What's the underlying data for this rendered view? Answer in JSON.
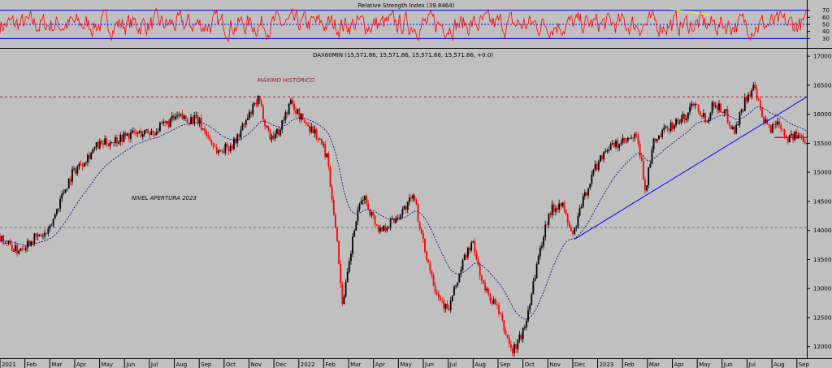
{
  "chart_data": [
    {
      "type": "line",
      "title": "Relative Strength Index (39.8464)",
      "y_ticks": [
        "70",
        "60",
        "50",
        "40",
        "30"
      ],
      "ylim": [
        20,
        80
      ],
      "levels": [
        70,
        50,
        30
      ],
      "series": [
        {
          "name": "",
          "color": "#ff0000"
        }
      ],
      "trendline": {
        "color": "#ffff00",
        "points": [
          [
            0.83,
            72
          ],
          [
            0.88,
            63
          ]
        ]
      }
    },
    {
      "type": "candlestick",
      "title": "DAX60MIN (15,571.86, 15,571.86, 15,571.86, 15,571.86, +0.0)",
      "y_ticks": [
        "17000",
        "16500",
        "16000",
        "15500",
        "15000",
        "14500",
        "14000",
        "13500",
        "13000",
        "12500",
        "12000"
      ],
      "ylim": [
        11800,
        17100
      ],
      "x_ticks": [
        "2021",
        "Feb",
        "Mar",
        "Apr",
        "May",
        "Jun",
        "Jul",
        "Aug",
        "Sep",
        "Oct",
        "Nov",
        "Dec",
        "2022",
        "Feb",
        "Mar",
        "Apr",
        "May",
        "Jun",
        "Jul",
        "Aug",
        "Sep",
        "Oct",
        "Nov",
        "Dec",
        "2023",
        "Feb",
        "Mar",
        "Apr",
        "May",
        "Jun",
        "Jul",
        "Aug",
        "Sep"
      ],
      "anchors": [
        [
          0.0,
          13900
        ],
        [
          0.02,
          13650
        ],
        [
          0.04,
          13850
        ],
        [
          0.06,
          13950
        ],
        [
          0.075,
          14550
        ],
        [
          0.09,
          15000
        ],
        [
          0.12,
          15450
        ],
        [
          0.16,
          15650
        ],
        [
          0.19,
          15700
        ],
        [
          0.22,
          15950
        ],
        [
          0.245,
          15900
        ],
        [
          0.27,
          15350
        ],
        [
          0.29,
          15500
        ],
        [
          0.31,
          16000
        ],
        [
          0.32,
          16250
        ],
        [
          0.335,
          15600
        ],
        [
          0.345,
          15700
        ],
        [
          0.36,
          16200
        ],
        [
          0.375,
          15900
        ],
        [
          0.39,
          15700
        ],
        [
          0.405,
          15300
        ],
        [
          0.415,
          14200
        ],
        [
          0.425,
          12700
        ],
        [
          0.44,
          14100
        ],
        [
          0.45,
          14600
        ],
        [
          0.47,
          14000
        ],
        [
          0.49,
          14200
        ],
        [
          0.515,
          14600
        ],
        [
          0.52,
          14000
        ],
        [
          0.54,
          13000
        ],
        [
          0.555,
          12600
        ],
        [
          0.575,
          13500
        ],
        [
          0.585,
          13800
        ],
        [
          0.6,
          13000
        ],
        [
          0.615,
          12700
        ],
        [
          0.625,
          12300
        ],
        [
          0.635,
          11900
        ],
        [
          0.65,
          12300
        ],
        [
          0.665,
          13400
        ],
        [
          0.68,
          14300
        ],
        [
          0.695,
          14500
        ],
        [
          0.71,
          13900
        ],
        [
          0.72,
          14400
        ],
        [
          0.735,
          15000
        ],
        [
          0.75,
          15400
        ],
        [
          0.77,
          15500
        ],
        [
          0.79,
          15600
        ],
        [
          0.8,
          14700
        ],
        [
          0.81,
          15500
        ],
        [
          0.83,
          15800
        ],
        [
          0.85,
          15950
        ],
        [
          0.86,
          16250
        ],
        [
          0.875,
          15900
        ],
        [
          0.885,
          16200
        ],
        [
          0.9,
          16000
        ],
        [
          0.91,
          15700
        ],
        [
          0.925,
          16300
        ],
        [
          0.935,
          16450
        ],
        [
          0.945,
          15900
        ],
        [
          0.955,
          15750
        ],
        [
          0.965,
          15900
        ],
        [
          0.975,
          15600
        ],
        [
          0.99,
          15620
        ],
        [
          1.0,
          15570
        ]
      ],
      "ma": {
        "name": "",
        "color": "#000080"
      },
      "levels": [
        {
          "value": 16300,
          "color": "#8b1a1a",
          "label": "MÁXIMO HISTÓRICO"
        },
        {
          "value": 14050,
          "color": "#555555",
          "label": "NIVEL APERTURA 2023"
        },
        {
          "value": 15600,
          "color": "#ff0000",
          "label": ""
        }
      ],
      "trendline": {
        "color": "#0000ff",
        "points": [
          [
            0.712,
            13850
          ],
          [
            1.0,
            16300
          ]
        ]
      }
    }
  ]
}
